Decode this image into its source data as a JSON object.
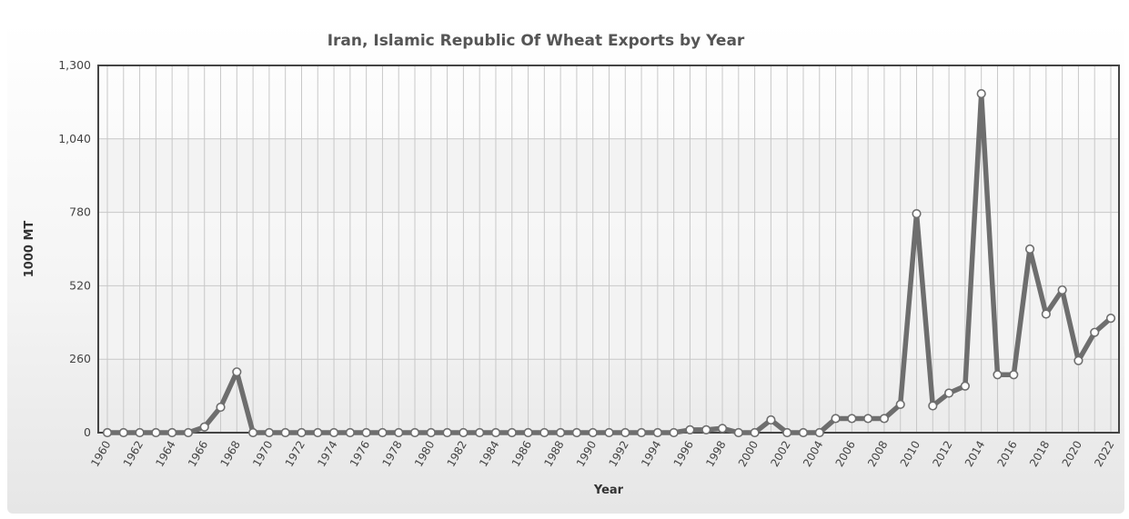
{
  "chart_data": {
    "type": "line",
    "title": "Iran, Islamic Republic Of Wheat Exports by Year",
    "xlabel": "Year",
    "ylabel": "1000 MT",
    "ylim": [
      0,
      1300
    ],
    "yticks": [
      0,
      260,
      520,
      780,
      1040,
      1300
    ],
    "ytick_labels": [
      "0",
      "260",
      "520",
      "780",
      "1,040",
      "1,300"
    ],
    "x": [
      1960,
      1961,
      1962,
      1963,
      1964,
      1965,
      1966,
      1967,
      1968,
      1969,
      1970,
      1971,
      1972,
      1973,
      1974,
      1975,
      1976,
      1977,
      1978,
      1979,
      1980,
      1981,
      1982,
      1983,
      1984,
      1985,
      1986,
      1987,
      1988,
      1989,
      1990,
      1991,
      1992,
      1993,
      1994,
      1995,
      1996,
      1997,
      1998,
      1999,
      2000,
      2001,
      2002,
      2003,
      2004,
      2005,
      2006,
      2007,
      2008,
      2009,
      2010,
      2011,
      2012,
      2013,
      2014,
      2015,
      2016,
      2017,
      2018,
      2019,
      2020,
      2021,
      2022
    ],
    "xtick_labels": [
      "1960",
      "1962",
      "1964",
      "1966",
      "1968",
      "1970",
      "1972",
      "1974",
      "1976",
      "1978",
      "1980",
      "1982",
      "1984",
      "1986",
      "1988",
      "1990",
      "1992",
      "1994",
      "1996",
      "1998",
      "2000",
      "2002",
      "2004",
      "2006",
      "2008",
      "2010",
      "2012",
      "2014",
      "2016",
      "2018",
      "2020",
      "2022"
    ],
    "series": [
      {
        "values": [
          0,
          0,
          0,
          0,
          0,
          0,
          20,
          90,
          215,
          0,
          0,
          0,
          0,
          0,
          0,
          0,
          0,
          0,
          0,
          0,
          0,
          0,
          0,
          0,
          0,
          0,
          0,
          0,
          0,
          0,
          0,
          0,
          0,
          0,
          0,
          0,
          10,
          10,
          15,
          0,
          0,
          45,
          0,
          0,
          0,
          50,
          50,
          50,
          50,
          100,
          775,
          95,
          140,
          165,
          1200,
          205,
          205,
          650,
          420,
          505,
          255,
          355,
          405
        ]
      }
    ],
    "grid": true,
    "legend": "none",
    "colors": {
      "line": "#6e6e6e",
      "marker_fill": "#ffffff",
      "marker_stroke": "#6e6e6e",
      "grid": "#c8c8c8",
      "plot_border": "#444444"
    }
  }
}
